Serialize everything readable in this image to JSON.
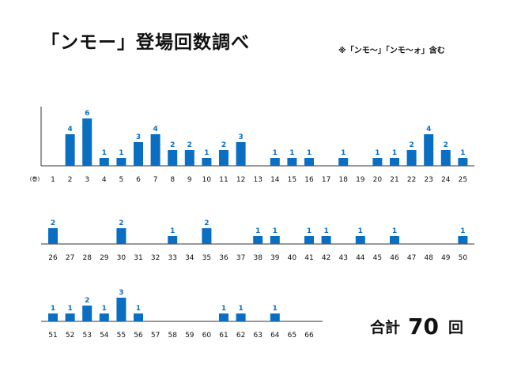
{
  "title": "「ンモー」登場回数調べ",
  "note": "※「ンモ〜」「ンモ〜ォ」含む",
  "colors": {
    "bar": "#0a6fc2",
    "label": "#0a6fc2",
    "axis": "#333333"
  },
  "total": {
    "label": "合計",
    "value": "70",
    "unit": "回"
  },
  "chart_data": {
    "type": "bar",
    "title": "「ンモー」登場回数調べ",
    "xlabel": "(巻)",
    "ylabel": "",
    "ylim": [
      0,
      6
    ],
    "grid": false,
    "legend": "none",
    "rows": [
      {
        "categories": [
          "1",
          "2",
          "3",
          "4",
          "5",
          "6",
          "7",
          "8",
          "9",
          "10",
          "11",
          "12",
          "13",
          "14",
          "15",
          "16",
          "17",
          "18",
          "19",
          "20",
          "21",
          "22",
          "23",
          "24",
          "25"
        ],
        "values": [
          0,
          4,
          6,
          1,
          1,
          3,
          4,
          2,
          2,
          1,
          2,
          3,
          0,
          1,
          1,
          1,
          0,
          1,
          0,
          1,
          1,
          2,
          4,
          2,
          1
        ]
      },
      {
        "categories": [
          "26",
          "27",
          "28",
          "29",
          "30",
          "31",
          "32",
          "33",
          "34",
          "35",
          "36",
          "37",
          "38",
          "39",
          "40",
          "41",
          "42",
          "43",
          "44",
          "45",
          "46",
          "47",
          "48",
          "49",
          "50"
        ],
        "values": [
          2,
          0,
          0,
          0,
          2,
          0,
          0,
          1,
          0,
          2,
          0,
          0,
          1,
          1,
          0,
          1,
          1,
          0,
          1,
          0,
          1,
          0,
          0,
          0,
          1
        ]
      },
      {
        "categories": [
          "51",
          "52",
          "53",
          "54",
          "55",
          "56",
          "57",
          "58",
          "59",
          "60",
          "61",
          "62",
          "63",
          "64",
          "65",
          "66"
        ],
        "values": [
          1,
          1,
          2,
          1,
          3,
          1,
          0,
          0,
          0,
          0,
          1,
          1,
          0,
          1,
          0,
          0
        ]
      }
    ]
  }
}
